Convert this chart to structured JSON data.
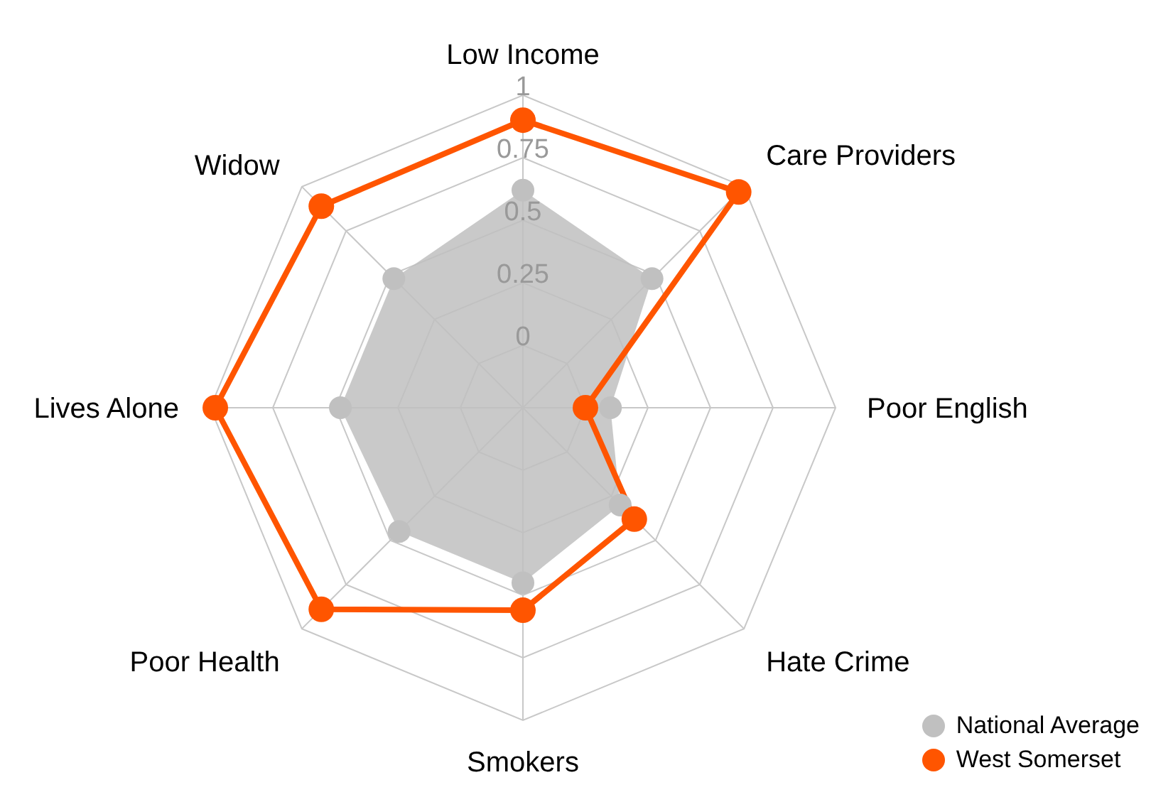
{
  "chart_data": {
    "type": "radar",
    "categories": [
      "Low Income",
      "Care Providers",
      "Poor English",
      "Hate Crime",
      "Smokers",
      "Poor Health",
      "Lives Alone",
      "Widow"
    ],
    "series": [
      {
        "name": "National Average",
        "color": "#c0c0c0",
        "values": [
          0.62,
          0.48,
          0.1,
          0.3,
          0.45,
          0.45,
          0.48,
          0.48
        ]
      },
      {
        "name": "West Somerset",
        "color": "#ff5500",
        "values": [
          0.9,
          0.97,
          0.0,
          0.38,
          0.56,
          0.89,
          0.98,
          0.89
        ]
      }
    ],
    "ylim": [
      -0.25,
      1
    ],
    "yticks": [
      0,
      0.25,
      0.5,
      0.75,
      1
    ],
    "grid": true,
    "legend": "bottom right",
    "marker": "circle"
  }
}
